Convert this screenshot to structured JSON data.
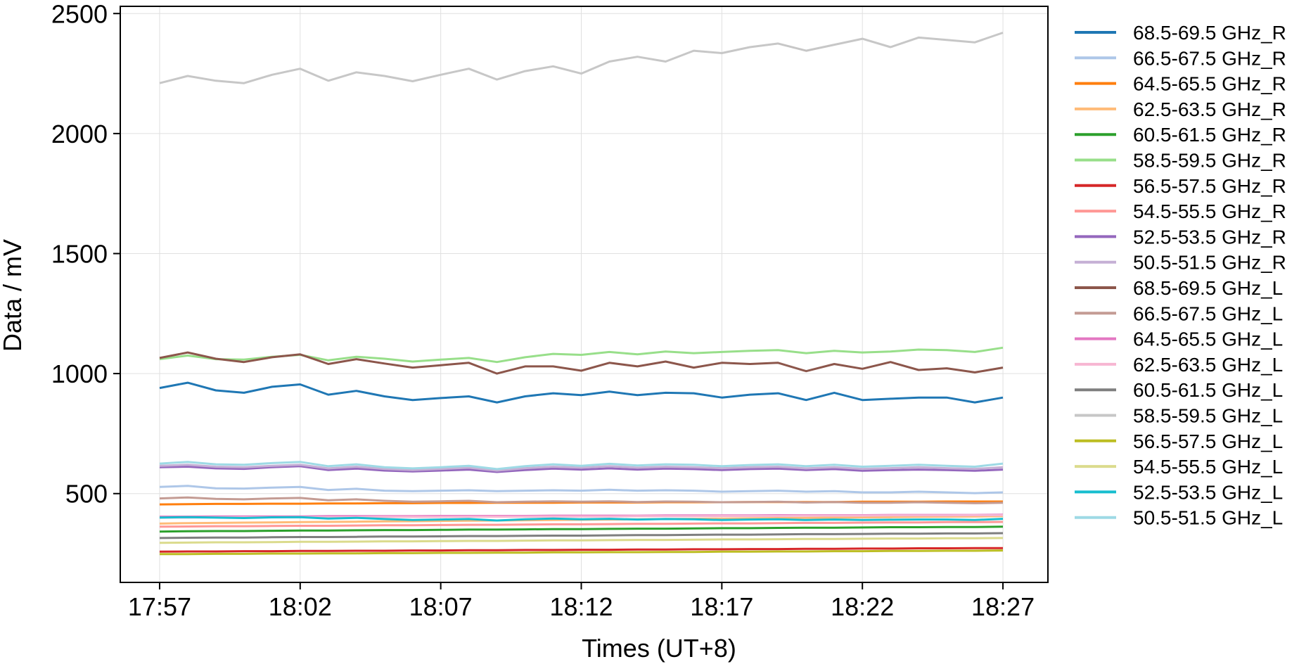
{
  "chart_data": {
    "type": "line",
    "title": "",
    "xlabel": "Times (UT+8)",
    "ylabel": "Data / mV",
    "x_ticks": [
      "17:57",
      "18:02",
      "18:07",
      "18:12",
      "18:17",
      "18:22",
      "18:27"
    ],
    "x_tick_minutes": [
      0,
      5,
      10,
      15,
      20,
      25,
      30
    ],
    "x_range_minutes": [
      -1.4,
      31.6
    ],
    "ylim": [
      130,
      2530
    ],
    "y_ticks": [
      500,
      1000,
      1500,
      2000,
      2500
    ],
    "grid": true,
    "legend_position": "outside-right",
    "x_minutes": [
      0,
      1,
      2,
      3,
      4,
      5,
      6,
      7,
      8,
      9,
      10,
      11,
      12,
      13,
      14,
      15,
      16,
      17,
      18,
      19,
      20,
      21,
      22,
      23,
      24,
      25,
      26,
      27,
      28,
      29,
      30
    ],
    "series": [
      {
        "name": "68.5-69.5 GHz_R",
        "color": "#1f77b4",
        "values": [
          940,
          962,
          930,
          920,
          945,
          955,
          912,
          928,
          905,
          890,
          898,
          905,
          880,
          905,
          918,
          910,
          925,
          910,
          920,
          918,
          900,
          912,
          918,
          890,
          920,
          890,
          895,
          900,
          900,
          880,
          900
        ]
      },
      {
        "name": "66.5-67.5 GHz_R",
        "color": "#aec7e8",
        "values": [
          528,
          532,
          522,
          521,
          525,
          528,
          515,
          520,
          512,
          510,
          512,
          514,
          510,
          512,
          514,
          512,
          516,
          512,
          514,
          512,
          508,
          510,
          512,
          508,
          510,
          505,
          505,
          508,
          505,
          502,
          505
        ]
      },
      {
        "name": "64.5-65.5 GHz_R",
        "color": "#ff7f0e",
        "values": [
          455,
          456,
          457,
          457,
          458,
          458,
          459,
          459,
          460,
          460,
          461,
          461,
          462,
          462,
          462,
          463,
          463,
          463,
          464,
          464,
          464,
          465,
          465,
          465,
          465,
          466,
          466,
          466,
          467,
          467,
          467
        ]
      },
      {
        "name": "62.5-63.5 GHz_R",
        "color": "#ffbb78",
        "values": [
          375,
          377,
          378,
          379,
          380,
          381,
          382,
          383,
          384,
          385,
          386,
          387,
          388,
          389,
          390,
          391,
          392,
          393,
          394,
          395,
          396,
          397,
          398,
          399,
          400,
          401,
          402,
          403,
          404,
          405,
          406
        ]
      },
      {
        "name": "60.5-61.5 GHz_R",
        "color": "#2ca02c",
        "values": [
          342,
          343,
          344,
          344,
          345,
          346,
          346,
          347,
          348,
          348,
          349,
          350,
          350,
          351,
          352,
          352,
          353,
          354,
          354,
          355,
          356,
          356,
          357,
          358,
          358,
          359,
          360,
          360,
          361,
          361,
          362
        ]
      },
      {
        "name": "58.5-59.5 GHz_R",
        "color": "#98df8a",
        "values": [
          1060,
          1075,
          1060,
          1058,
          1070,
          1078,
          1055,
          1070,
          1062,
          1050,
          1058,
          1065,
          1048,
          1068,
          1082,
          1078,
          1090,
          1080,
          1092,
          1085,
          1090,
          1095,
          1098,
          1085,
          1095,
          1088,
          1092,
          1100,
          1098,
          1090,
          1108
        ]
      },
      {
        "name": "56.5-57.5 GHz_R",
        "color": "#d62728",
        "values": [
          258,
          259,
          259,
          260,
          260,
          261,
          261,
          262,
          262,
          263,
          263,
          264,
          264,
          265,
          265,
          266,
          266,
          267,
          267,
          268,
          268,
          269,
          269,
          270,
          270,
          271,
          271,
          272,
          272,
          273,
          273
        ]
      },
      {
        "name": "54.5-55.5 GHz_R",
        "color": "#ff9896",
        "values": [
          362,
          363,
          364,
          364,
          365,
          366,
          366,
          367,
          368,
          368,
          369,
          370,
          370,
          371,
          372,
          372,
          373,
          374,
          374,
          375,
          376,
          376,
          377,
          378,
          378,
          379,
          380,
          380,
          381,
          381,
          382
        ]
      },
      {
        "name": "52.5-53.5 GHz_R",
        "color": "#9467bd",
        "values": [
          610,
          612,
          605,
          603,
          610,
          614,
          598,
          604,
          596,
          592,
          596,
          600,
          590,
          598,
          604,
          600,
          605,
          600,
          604,
          602,
          598,
          602,
          604,
          598,
          602,
          595,
          598,
          600,
          598,
          595,
          600
        ]
      },
      {
        "name": "50.5-51.5 GHz_R",
        "color": "#c5b0d5",
        "values": [
          616,
          620,
          612,
          610,
          616,
          620,
          605,
          612,
          603,
          598,
          603,
          608,
          596,
          606,
          612,
          608,
          614,
          608,
          612,
          610,
          606,
          610,
          612,
          605,
          610,
          603,
          606,
          610,
          606,
          603,
          610
        ]
      },
      {
        "name": "68.5-69.5 GHz_L",
        "color": "#8c564b",
        "values": [
          1065,
          1088,
          1062,
          1048,
          1068,
          1080,
          1040,
          1060,
          1042,
          1025,
          1035,
          1045,
          1000,
          1030,
          1030,
          1012,
          1045,
          1030,
          1050,
          1025,
          1045,
          1040,
          1045,
          1010,
          1040,
          1020,
          1048,
          1015,
          1022,
          1005,
          1025
        ]
      },
      {
        "name": "66.5-67.5 GHz_L",
        "color": "#c49c94",
        "values": [
          480,
          484,
          478,
          476,
          480,
          482,
          472,
          476,
          470,
          466,
          468,
          470,
          464,
          466,
          468,
          466,
          468,
          465,
          467,
          466,
          464,
          465,
          466,
          463,
          465,
          462,
          462,
          464,
          462,
          460,
          462
        ]
      },
      {
        "name": "64.5-65.5 GHz_L",
        "color": "#e377c2",
        "values": [
          404,
          404,
          405,
          405,
          405,
          405,
          406,
          406,
          406,
          406,
          407,
          407,
          407,
          407,
          408,
          408,
          408,
          408,
          409,
          409,
          409,
          409,
          410,
          410,
          410,
          410,
          411,
          411,
          411,
          411,
          412
        ]
      },
      {
        "name": "62.5-63.5 GHz_L",
        "color": "#f7b6d2",
        "values": [
          400,
          400,
          401,
          401,
          401,
          402,
          402,
          402,
          403,
          403,
          403,
          404,
          404,
          404,
          405,
          405,
          405,
          406,
          406,
          406,
          407,
          407,
          407,
          408,
          408,
          408,
          409,
          409,
          409,
          410,
          410
        ]
      },
      {
        "name": "60.5-61.5 GHz_L",
        "color": "#7f7f7f",
        "values": [
          315,
          316,
          317,
          317,
          318,
          319,
          319,
          320,
          321,
          321,
          322,
          323,
          323,
          324,
          325,
          325,
          326,
          327,
          327,
          328,
          329,
          329,
          330,
          331,
          331,
          332,
          333,
          333,
          334,
          334,
          335
        ]
      },
      {
        "name": "58.5-59.5 GHz_L",
        "color": "#c7c7c7",
        "values": [
          2210,
          2240,
          2220,
          2210,
          2245,
          2270,
          2220,
          2255,
          2240,
          2218,
          2245,
          2270,
          2225,
          2260,
          2280,
          2250,
          2300,
          2320,
          2300,
          2345,
          2335,
          2360,
          2375,
          2345,
          2370,
          2395,
          2360,
          2400,
          2390,
          2380,
          2420
        ]
      },
      {
        "name": "56.5-57.5 GHz_L",
        "color": "#bcbd22",
        "values": [
          248,
          248,
          249,
          249,
          250,
          250,
          251,
          251,
          252,
          252,
          253,
          253,
          254,
          254,
          255,
          255,
          256,
          256,
          257,
          257,
          258,
          258,
          259,
          259,
          260,
          260,
          261,
          261,
          262,
          262,
          263
        ]
      },
      {
        "name": "54.5-55.5 GHz_L",
        "color": "#dbdb8d",
        "values": [
          295,
          296,
          297,
          297,
          298,
          299,
          299,
          300,
          301,
          301,
          302,
          303,
          303,
          304,
          305,
          305,
          306,
          307,
          307,
          308,
          309,
          309,
          310,
          311,
          311,
          312,
          313,
          313,
          314,
          314,
          315
        ]
      },
      {
        "name": "52.5-53.5 GHz_L",
        "color": "#17becf",
        "values": [
          400,
          402,
          400,
          398,
          401,
          402,
          396,
          399,
          394,
          390,
          392,
          394,
          388,
          393,
          396,
          393,
          395,
          392,
          394,
          393,
          390,
          392,
          393,
          390,
          392,
          390,
          391,
          392,
          392,
          390,
          395
        ]
      },
      {
        "name": "50.5-51.5 GHz_L",
        "color": "#9edae5",
        "values": [
          625,
          632,
          622,
          620,
          627,
          632,
          614,
          622,
          610,
          605,
          610,
          616,
          602,
          614,
          622,
          616,
          624,
          617,
          622,
          620,
          614,
          619,
          622,
          614,
          620,
          612,
          616,
          620,
          616,
          612,
          625
        ]
      }
    ]
  }
}
